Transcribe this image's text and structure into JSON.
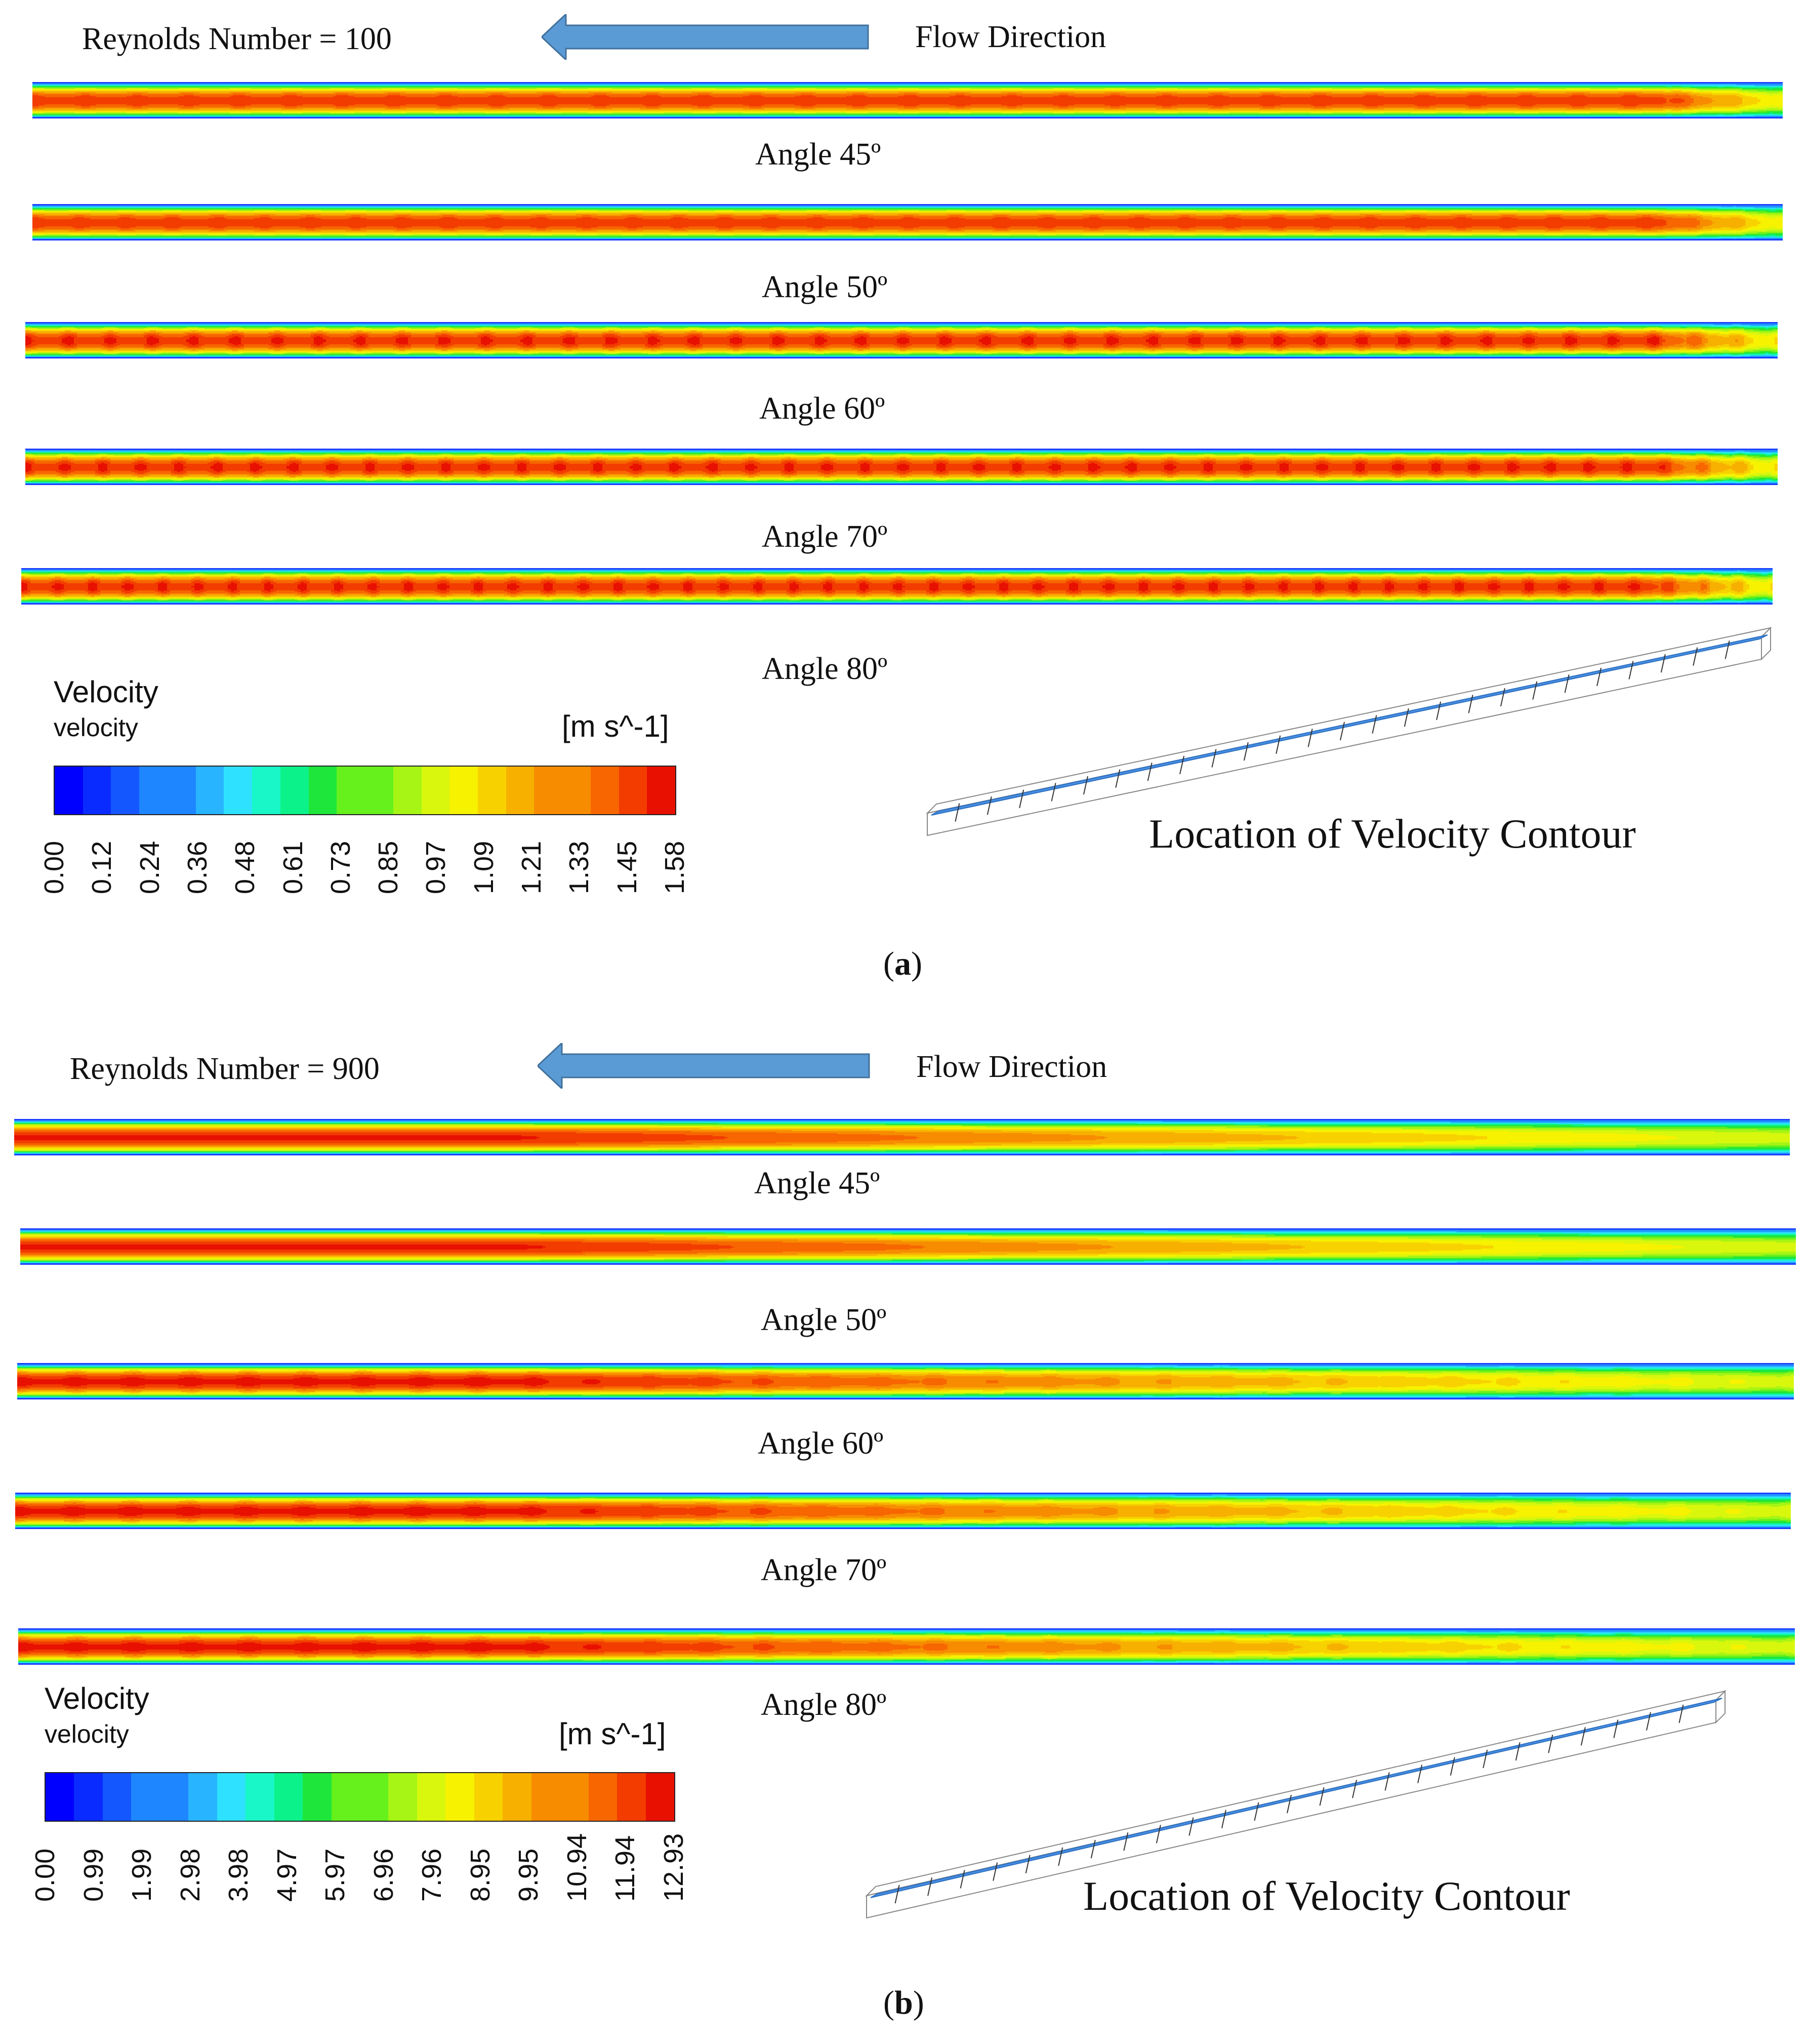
{
  "figures": [
    {
      "id": "a",
      "reynolds_label": "Reynolds Number = 100",
      "flow_label": "Flow Direction",
      "angles": [
        "Angle 45º",
        "Angle 50º",
        "Angle 60º",
        "Angle 70º",
        "Angle 80º"
      ],
      "legend": {
        "title": "Velocity",
        "subtitle": "velocity",
        "unit": "[m s^-1]",
        "ticks": [
          "0.00",
          "0.12",
          "0.24",
          "0.36",
          "0.48",
          "0.61",
          "0.73",
          "0.85",
          "0.97",
          "1.09",
          "1.21",
          "1.33",
          "1.45",
          "1.58"
        ]
      },
      "location_label": "Location of Velocity Contour",
      "caption": "(a)",
      "caption_letter": "a"
    },
    {
      "id": "b",
      "reynolds_label": "Reynolds Number = 900",
      "flow_label": "Flow Direction",
      "angles": [
        "Angle 45º",
        "Angle 50º",
        "Angle 60º",
        "Angle 70º",
        "Angle 80º"
      ],
      "legend": {
        "title": "Velocity",
        "subtitle": "velocity",
        "unit": "[m s^-1]",
        "ticks": [
          "0.00",
          "0.99",
          "1.99",
          "2.98",
          "3.98",
          "4.97",
          "5.97",
          "6.96",
          "7.96",
          "8.95",
          "9.95",
          "10.94",
          "11.94",
          "12.93"
        ]
      },
      "location_label": "Location of Velocity Contour",
      "caption": "(b)",
      "caption_letter": "b"
    }
  ],
  "colormap": [
    "#0000ff",
    "#0a2bff",
    "#1457ff",
    "#1e86ff",
    "#28b4ff",
    "#2ee2ff",
    "#19f7c8",
    "#0cf28a",
    "#1ee63a",
    "#66f01c",
    "#a6f514",
    "#d8f70d",
    "#f7f200",
    "#f7d200",
    "#f7b000",
    "#f78c00",
    "#f76600",
    "#f23c00",
    "#e81000"
  ],
  "arrow_color": "#5b9bd5"
}
